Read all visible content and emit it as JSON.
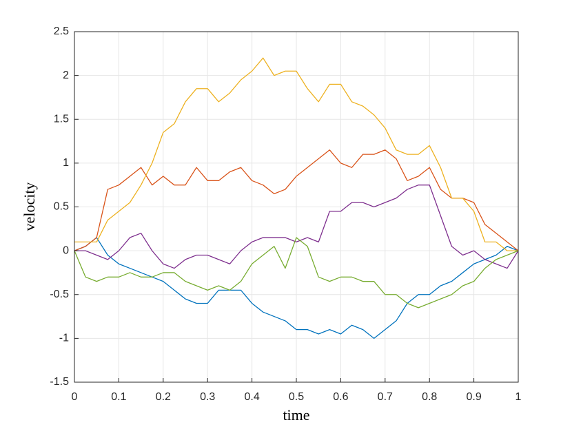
{
  "chart_data": {
    "type": "line",
    "xlabel": "time",
    "ylabel": "velocity",
    "x": [
      0,
      0.025,
      0.05,
      0.075,
      0.1,
      0.125,
      0.15,
      0.175,
      0.2,
      0.225,
      0.25,
      0.275,
      0.3,
      0.325,
      0.35,
      0.375,
      0.4,
      0.425,
      0.45,
      0.475,
      0.5,
      0.525,
      0.55,
      0.575,
      0.6,
      0.625,
      0.65,
      0.675,
      0.7,
      0.725,
      0.75,
      0.775,
      0.8,
      0.825,
      0.85,
      0.875,
      0.9,
      0.925,
      0.95,
      0.975,
      1
    ],
    "series": [
      {
        "color": "#0072BD",
        "values": [
          0,
          0.05,
          0.15,
          -0.05,
          -0.15,
          -0.2,
          -0.25,
          -0.3,
          -0.35,
          -0.45,
          -0.55,
          -0.6,
          -0.6,
          -0.45,
          -0.45,
          -0.45,
          -0.6,
          -0.7,
          -0.75,
          -0.8,
          -0.9,
          -0.9,
          -0.95,
          -0.9,
          -0.95,
          -0.85,
          -0.9,
          -1.0,
          -0.9,
          -0.8,
          -0.6,
          -0.5,
          -0.5,
          -0.4,
          -0.35,
          -0.25,
          -0.15,
          -0.1,
          -0.05,
          0.05,
          0
        ]
      },
      {
        "color": "#D95319",
        "values": [
          0,
          0.05,
          0.15,
          0.7,
          0.75,
          0.85,
          0.95,
          0.75,
          0.85,
          0.75,
          0.75,
          0.95,
          0.8,
          0.8,
          0.9,
          0.95,
          0.8,
          0.75,
          0.65,
          0.7,
          0.85,
          0.95,
          1.05,
          1.15,
          1.0,
          0.95,
          1.1,
          1.1,
          1.15,
          1.05,
          0.8,
          0.85,
          0.95,
          0.7,
          0.6,
          0.6,
          0.55,
          0.3,
          0.2,
          0.1,
          0
        ]
      },
      {
        "color": "#EDB120",
        "values": [
          0.1,
          0.1,
          0.1,
          0.35,
          0.45,
          0.55,
          0.75,
          1.0,
          1.35,
          1.45,
          1.7,
          1.85,
          1.85,
          1.7,
          1.8,
          1.95,
          2.05,
          2.2,
          2.0,
          2.05,
          2.05,
          1.85,
          1.7,
          1.9,
          1.9,
          1.7,
          1.65,
          1.55,
          1.4,
          1.15,
          1.1,
          1.1,
          1.2,
          0.95,
          0.6,
          0.6,
          0.45,
          0.1,
          0.1,
          0.0,
          0
        ]
      },
      {
        "color": "#7E2F8E",
        "values": [
          0,
          0.0,
          -0.05,
          -0.1,
          0.0,
          0.15,
          0.2,
          0.0,
          -0.15,
          -0.2,
          -0.1,
          -0.05,
          -0.05,
          -0.1,
          -0.15,
          0.0,
          0.1,
          0.15,
          0.15,
          0.15,
          0.1,
          0.15,
          0.1,
          0.45,
          0.45,
          0.55,
          0.55,
          0.5,
          0.55,
          0.6,
          0.7,
          0.75,
          0.75,
          0.4,
          0.05,
          -0.05,
          0.0,
          -0.1,
          -0.15,
          -0.2,
          0
        ]
      },
      {
        "color": "#77AC30",
        "values": [
          0,
          -0.3,
          -0.35,
          -0.3,
          -0.3,
          -0.25,
          -0.3,
          -0.3,
          -0.25,
          -0.25,
          -0.35,
          -0.4,
          -0.45,
          -0.4,
          -0.45,
          -0.35,
          -0.15,
          -0.05,
          0.05,
          -0.2,
          0.15,
          0.05,
          -0.3,
          -0.35,
          -0.3,
          -0.3,
          -0.35,
          -0.35,
          -0.5,
          -0.5,
          -0.6,
          -0.65,
          -0.6,
          -0.55,
          -0.5,
          -0.4,
          -0.35,
          -0.2,
          -0.1,
          -0.05,
          0
        ]
      }
    ],
    "xlim": [
      0,
      1
    ],
    "xticks": [
      0,
      0.1,
      0.2,
      0.3,
      0.4,
      0.5,
      0.6,
      0.7,
      0.8,
      0.9,
      1
    ],
    "ylim": [
      -1.5,
      2.5
    ],
    "yticks": [
      -1.5,
      -1,
      -0.5,
      0,
      0.5,
      1,
      1.5,
      2,
      2.5
    ],
    "grid": true
  }
}
